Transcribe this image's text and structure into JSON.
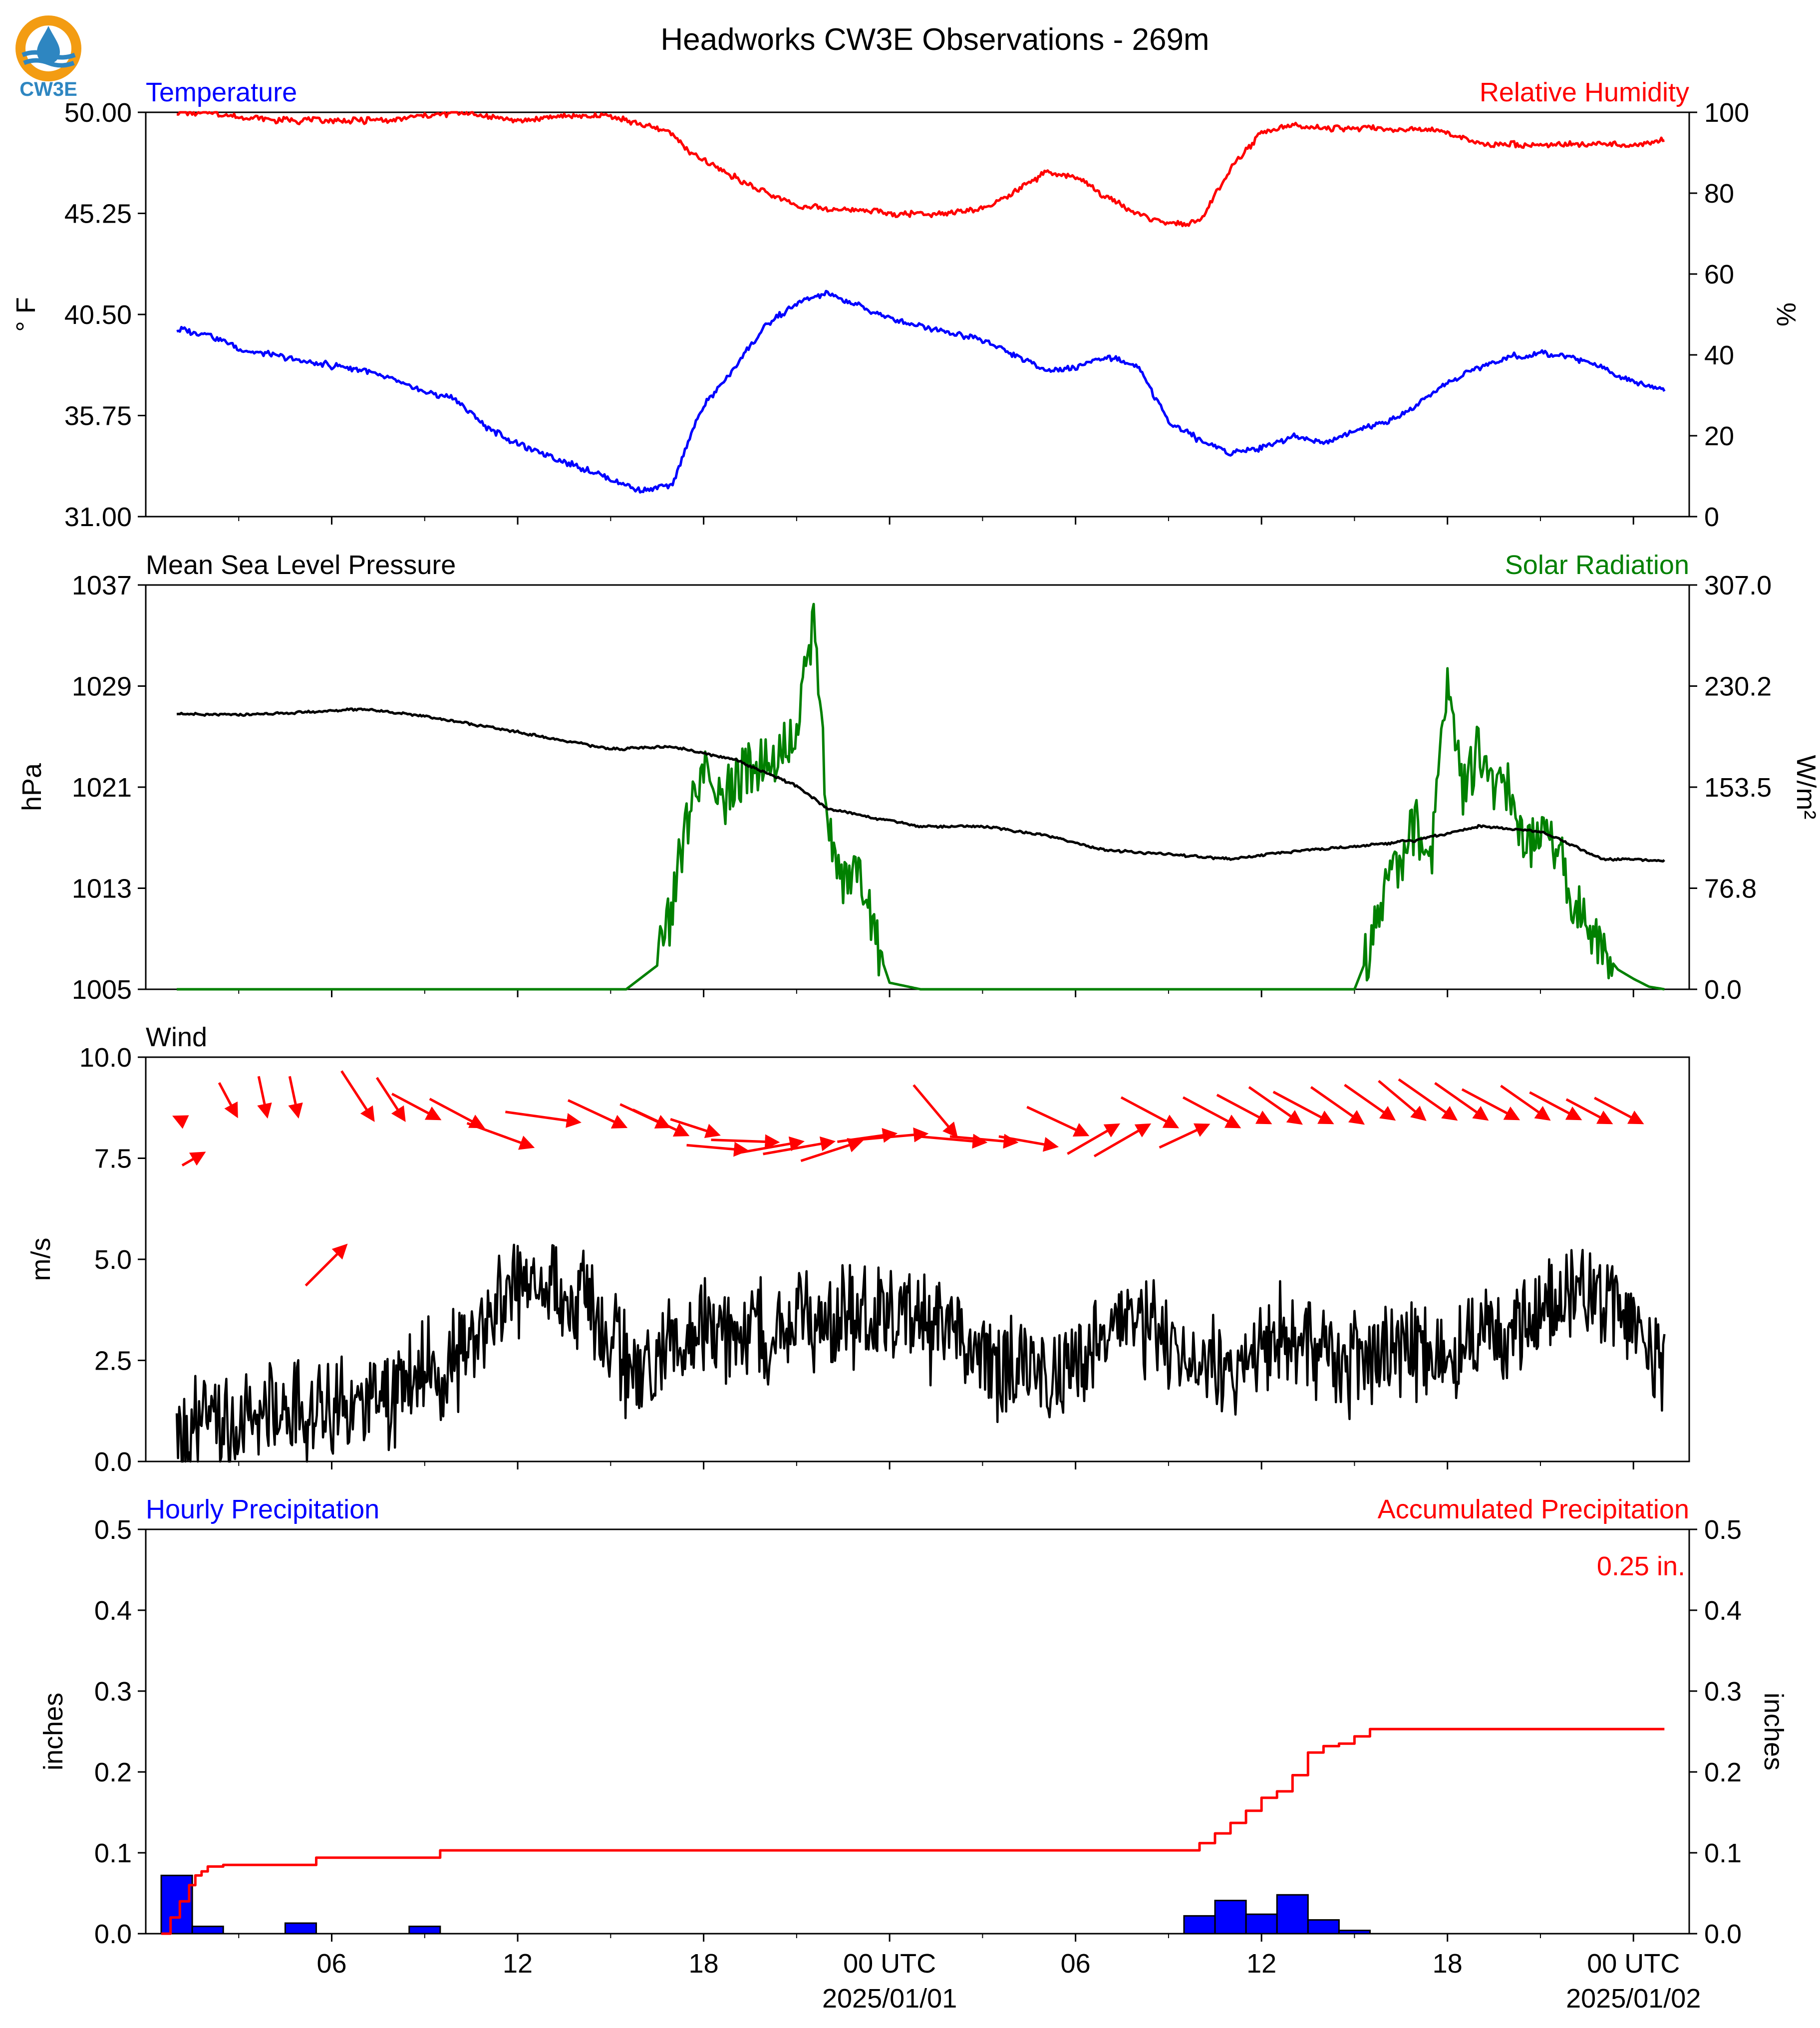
{
  "title": "Headworks CW3E Observations - 269m",
  "logo": {
    "label": "CW3E",
    "icon": "water-drop-logo-icon",
    "colors": {
      "ring": "#f39c12",
      "wave": "#2e86c1",
      "text": "#2e86c1"
    }
  },
  "x_axis": {
    "ticks": [
      {
        "label": "06",
        "sub": ""
      },
      {
        "label": "12",
        "sub": ""
      },
      {
        "label": "18",
        "sub": ""
      },
      {
        "label": "00 UTC",
        "sub": "2025/01/01"
      },
      {
        "label": "06",
        "sub": ""
      },
      {
        "label": "12",
        "sub": ""
      },
      {
        "label": "18",
        "sub": ""
      },
      {
        "label": "00 UTC",
        "sub": "2025/01/02"
      }
    ]
  },
  "chart_data": [
    {
      "type": "line",
      "panel": "temperature-humidity",
      "left_title": "Temperature",
      "right_title": "Relative Humidity",
      "ylabel": "° F",
      "ylabel_right": "%",
      "ylim": [
        31.0,
        50.0
      ],
      "ylim_right": [
        0,
        100
      ],
      "yticks": [
        "50.00",
        "45.25",
        "40.50",
        "35.75",
        "31.00"
      ],
      "yticks_right": [
        "100",
        "80",
        "60",
        "40",
        "20",
        "0"
      ],
      "x_hours": [
        1,
        2,
        3,
        4,
        5,
        6,
        7,
        8,
        9,
        10,
        11,
        12,
        13,
        14,
        15,
        16,
        17,
        17.5,
        18,
        19,
        20,
        21,
        22,
        23,
        24,
        25,
        26,
        27,
        28,
        29,
        30,
        31,
        32,
        33,
        34,
        35,
        36,
        37,
        38,
        39,
        40,
        41,
        42,
        43,
        44,
        45,
        46,
        47,
        48,
        49
      ],
      "series": [
        {
          "name": "Temperature",
          "color": "#0000ff",
          "axis": "left",
          "values": [
            39.8,
            39.6,
            38.9,
            38.6,
            38.3,
            38.1,
            37.9,
            37.4,
            36.9,
            36.5,
            35.2,
            34.4,
            33.9,
            33.3,
            32.8,
            32.2,
            32.5,
            34.5,
            36.2,
            38.0,
            40.0,
            41.0,
            41.5,
            40.9,
            40.3,
            40.0,
            39.6,
            39.3,
            38.6,
            37.9,
            38.0,
            38.5,
            38.1,
            35.5,
            34.6,
            34.0,
            34.2,
            34.8,
            34.5,
            35.0,
            35.4,
            36.2,
            37.3,
            38.0,
            38.5,
            38.7,
            38.5,
            38.0,
            37.3,
            37.0
          ]
        },
        {
          "name": "Relative Humidity",
          "color": "#ff0000",
          "axis": "right",
          "values": [
            100,
            100,
            99,
            98,
            98,
            98,
            98,
            98,
            99,
            100,
            99,
            98,
            99,
            99,
            99,
            97,
            95,
            90,
            88,
            84,
            80,
            77,
            76,
            76,
            75,
            75,
            75,
            76,
            80,
            85,
            84,
            79,
            75,
            72,
            73,
            86,
            95,
            97,
            96,
            96,
            96,
            96,
            95,
            92,
            92,
            92,
            92,
            92,
            92,
            93
          ]
        }
      ]
    },
    {
      "type": "line",
      "panel": "pressure-solar",
      "left_title": "Mean Sea Level Pressure",
      "right_title": "Solar Radiation",
      "ylabel": "hPa",
      "ylabel_right": "W/m²",
      "ylim": [
        1005,
        1037
      ],
      "ylim_right": [
        0.0,
        307.0
      ],
      "yticks": [
        "1037",
        "1029",
        "1021",
        "1013",
        "1005"
      ],
      "yticks_right": [
        "307.0",
        "230.2",
        "153.5",
        "76.8",
        "0.0"
      ],
      "series": [
        {
          "name": "Mean Sea Level Pressure",
          "color": "#000000",
          "axis": "left",
          "x_hours": [
            1,
            3,
            5,
            7,
            9,
            11,
            13,
            15,
            17,
            19,
            21,
            22,
            23,
            25,
            27,
            29,
            31,
            33,
            35,
            37,
            39,
            41,
            43,
            45,
            47,
            49
          ],
          "values": [
            1026.8,
            1026.7,
            1026.9,
            1027.2,
            1026.6,
            1025.8,
            1024.9,
            1024.0,
            1024.2,
            1023.2,
            1021.1,
            1019.3,
            1018.8,
            1017.9,
            1017.9,
            1017.2,
            1016.0,
            1015.7,
            1015.3,
            1015.9,
            1016.3,
            1016.8,
            1017.9,
            1017.5,
            1015.3,
            1015.2
          ]
        },
        {
          "name": "Solar Radiation",
          "color": "#008000",
          "axis": "right",
          "x_hours": [
            1,
            15.5,
            16.5,
            17,
            17.3,
            17.6,
            18,
            18.5,
            19,
            19.5,
            20,
            20.5,
            21,
            21.3,
            21.6,
            21.9,
            22.2,
            22.6,
            23,
            23.5,
            24,
            25,
            30,
            39,
            39.5,
            40,
            40.5,
            41,
            41.5,
            42,
            42.5,
            43,
            43.5,
            44,
            44.5,
            45,
            45.5,
            46,
            46.5,
            47,
            47.5,
            48,
            48.5,
            49
          ],
          "values": [
            0,
            0,
            18,
            60,
            110,
            140,
            165,
            140,
            155,
            170,
            175,
            180,
            190,
            250,
            278,
            170,
            95,
            80,
            90,
            40,
            5,
            0,
            0,
            0,
            30,
            75,
            100,
            125,
            100,
            245,
            145,
            185,
            150,
            150,
            100,
            130,
            110,
            70,
            50,
            30,
            15,
            8,
            2,
            0
          ]
        }
      ]
    },
    {
      "type": "line",
      "panel": "wind",
      "left_title": "Wind",
      "ylabel": "m/s",
      "ylim": [
        0.0,
        10.0
      ],
      "yticks": [
        "10.0",
        "7.5",
        "5.0",
        "2.5",
        "0.0"
      ],
      "series": [
        {
          "name": "Wind speed",
          "color": "#000000",
          "x_hours": [
            1,
            2,
            3,
            4,
            5,
            6,
            7,
            8,
            9,
            10,
            11,
            12,
            13,
            14,
            15,
            16,
            17,
            18,
            19,
            20,
            21,
            22,
            23,
            24,
            25,
            26,
            27,
            28,
            29,
            30,
            31,
            32,
            33,
            34,
            35,
            36,
            37,
            38,
            39,
            40,
            41,
            42,
            43,
            44,
            45,
            46,
            47,
            48,
            49
          ],
          "values": [
            0.4,
            0.9,
            0.7,
            1.4,
            1.2,
            1.5,
            1.4,
            1.6,
            2.3,
            2.4,
            3.6,
            4.3,
            4.5,
            3.9,
            3.0,
            2.0,
            2.9,
            3.4,
            3.1,
            3.2,
            3.3,
            3.4,
            3.5,
            3.6,
            3.4,
            3.0,
            2.6,
            2.2,
            2.0,
            2.3,
            3.1,
            3.3,
            3.0,
            2.4,
            2.1,
            2.8,
            3.2,
            2.7,
            2.3,
            2.6,
            2.7,
            2.9,
            3.2,
            3.3,
            3.6,
            4.2,
            3.9,
            3.2,
            2.2
          ]
        },
        {
          "name": "Wind direction",
          "type": "quiver",
          "color": "#ff0000",
          "x_hours": [
            1,
            1.8,
            2.9,
            3.9,
            4.9,
            6.4,
            7.3,
            8.3,
            9.4,
            10.8,
            12.4,
            13.9,
            15.4,
            16.8,
            17.4,
            18.4,
            19.3,
            20.3,
            21.1,
            22.1,
            23.0,
            24.1,
            25.1,
            26.1,
            27.0,
            28.0,
            29.3,
            30.3,
            31.3,
            32.3,
            33.2,
            34.2,
            35.2,
            36.2,
            37.2,
            38.2,
            39.2,
            40.2,
            41.2,
            42.2,
            43.2,
            44.2,
            45.2,
            46.2,
            47.2,
            48.2
          ],
          "y": [
            8.5,
            7.6,
            8.6,
            8.6,
            8.6,
            5.3,
            8.5,
            8.5,
            8.5,
            8.3,
            7.8,
            8.4,
            8.3,
            8.3,
            8.1,
            8.1,
            7.7,
            7.9,
            7.9,
            7.9,
            7.9,
            8.1,
            8.1,
            8.1,
            7.9,
            7.9,
            7.8,
            8.1,
            8.3,
            8.3,
            8.3,
            8.3,
            8.3,
            8.4,
            8.4,
            8.4,
            8.4,
            8.5,
            8.5,
            8.5,
            8.5,
            8.5,
            8.5,
            8.5,
            8.4,
            8.4
          ],
          "dir_deg": [
            295,
            60,
            152,
            168,
            168,
            45,
            147,
            147,
            118,
            118,
            110,
            98,
            115,
            115,
            115,
            108,
            95,
            92,
            80,
            80,
            72,
            82,
            85,
            140,
            95,
            95,
            100,
            115,
            60,
            60,
            118,
            65,
            118,
            118,
            125,
            118,
            125,
            125,
            130,
            125,
            125,
            118,
            125,
            118,
            118,
            118
          ],
          "speed": [
            0.4,
            1.4,
            2.2,
            2.4,
            2.4,
            3.4,
            3.5,
            3.0,
            3.2,
            3.6,
            4.2,
            4.5,
            3.8,
            3.2,
            3.6,
            3.0,
            3.6,
            4.0,
            4.0,
            4.3,
            3.8,
            3.5,
            4.5,
            4.0,
            4.0,
            4.0,
            3.5,
            4.0,
            3.5,
            3.8,
            3.8,
            3.2,
            3.8,
            3.6,
            3.8,
            4.0,
            3.8,
            3.6,
            3.6,
            4.2,
            3.8,
            3.8,
            3.5,
            3.4,
            3.0,
            3.2
          ]
        }
      ]
    },
    {
      "type": "bar",
      "panel": "precipitation",
      "left_title": "Hourly Precipitation",
      "right_title": "Accumulated Precipitation",
      "ylabel": "inches",
      "ylabel_right": "inches",
      "ylim": [
        0.0,
        0.5
      ],
      "ylim_right": [
        0.0,
        0.5
      ],
      "yticks": [
        "0.5",
        "0.4",
        "0.3",
        "0.2",
        "0.1",
        "0.0"
      ],
      "yticks_right": [
        "0.5",
        "0.4",
        "0.3",
        "0.2",
        "0.1",
        "0.0"
      ],
      "annotation": "0.25 in.",
      "series": [
        {
          "name": "Hourly Precipitation",
          "color": "#0000ff",
          "x_hours": [
            1,
            2,
            5,
            9,
            34,
            35,
            36,
            37,
            38,
            39
          ],
          "values": [
            0.072,
            0.009,
            0.013,
            0.009,
            0.022,
            0.041,
            0.024,
            0.048,
            0.017,
            0.004
          ]
        },
        {
          "name": "Accumulated Precipitation",
          "color": "#ff0000",
          "step": true,
          "x_hours": [
            0.5,
            0.8,
            1.1,
            1.4,
            1.6,
            1.8,
            2.0,
            2.5,
            5.0,
            5.5,
            9.0,
            9.5,
            33.5,
            34.0,
            34.5,
            35.0,
            35.5,
            36.0,
            36.5,
            37.0,
            37.5,
            38.0,
            38.5,
            39.0,
            39.5,
            49.0
          ],
          "values": [
            0,
            0.02,
            0.04,
            0.06,
            0.072,
            0.077,
            0.083,
            0.085,
            0.085,
            0.094,
            0.094,
            0.103,
            0.103,
            0.112,
            0.124,
            0.137,
            0.152,
            0.168,
            0.176,
            0.196,
            0.224,
            0.232,
            0.235,
            0.244,
            0.253,
            0.253
          ]
        }
      ]
    }
  ]
}
